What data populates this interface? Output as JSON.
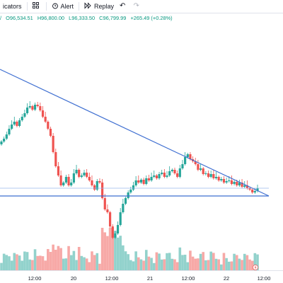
{
  "toolbar": {
    "indicators_label": "icators",
    "alert_label": "Alert",
    "replay_label": "Replay"
  },
  "ohlc": {
    "partial": "/",
    "open": "O96,534.51",
    "high": "H96,800.00",
    "low": "L96,333.50",
    "close": "C96,799.99",
    "change": "+265.49 (+0.28%)"
  },
  "time_axis": {
    "labels": [
      "12:00",
      "20",
      "12:00",
      "21",
      "12:00",
      "22",
      "12:00"
    ]
  },
  "colors": {
    "up": "#26a69a",
    "down": "#ef5350",
    "trendline": "#2962ff",
    "up_volume": "#92d2cc",
    "down_volume": "#f7a9a7"
  },
  "chart_data": {
    "type": "candlestick",
    "symbol_ohlc": {
      "open": 96534.51,
      "high": 96800.0,
      "low": 96333.5,
      "close": 96799.99,
      "change": 265.49,
      "change_pct": 0.28
    },
    "x_labels": [
      "12:00",
      "20",
      "12:00",
      "21",
      "12:00",
      "22",
      "12:00"
    ],
    "candles_relative_trend": "decline from ~Nov 19 12:00 peak to Nov 20 low, recovery and consolidation into a descending triangle on Nov 21–22",
    "drawings": [
      "descending trendline",
      "horizontal support line"
    ]
  }
}
